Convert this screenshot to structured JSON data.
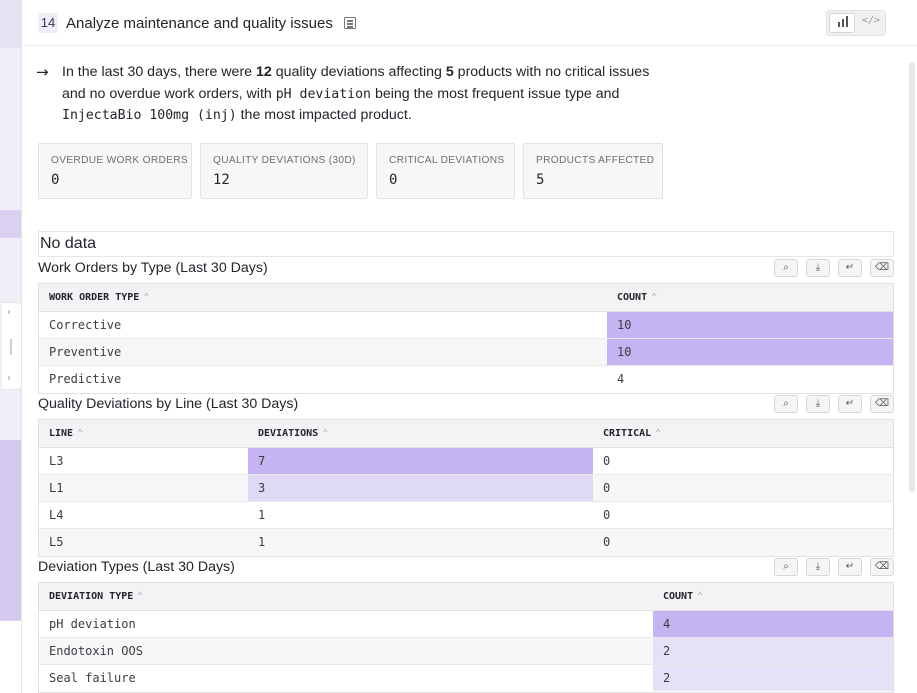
{
  "step": {
    "number": "14",
    "title": "Analyze maintenance and quality issues"
  },
  "summary": {
    "arrow": "→",
    "p1": "In the last 30 days, there were ",
    "n_deviations": "12",
    "p2": " quality deviations affecting ",
    "n_products": "5",
    "p3": " products with no critical issues and no overdue work orders, with ",
    "top_issue": "pH deviation",
    "p4": " being the most frequent issue type and ",
    "top_product": "InjectaBio 100mg (inj)",
    "p5": " the most impacted product."
  },
  "kpis": [
    {
      "label": "OVERDUE WORK ORDERS",
      "value": "0"
    },
    {
      "label": "QUALITY DEVIATIONS (30D)",
      "value": "12"
    },
    {
      "label": "CRITICAL DEVIATIONS",
      "value": "0"
    },
    {
      "label": "PRODUCTS AFFECTED",
      "value": "5"
    }
  ],
  "no_data": "No data",
  "tables": {
    "work_orders": {
      "title": "Work Orders by Type (Last 30 Days)",
      "headers": [
        "WORK ORDER TYPE",
        "COUNT"
      ],
      "rows": [
        [
          "Corrective",
          "10"
        ],
        [
          "Preventive",
          "10"
        ],
        [
          "Predictive",
          "4"
        ]
      ]
    },
    "deviations_by_line": {
      "title": "Quality Deviations by Line (Last 30 Days)",
      "headers": [
        "LINE",
        "DEVIATIONS",
        "CRITICAL"
      ],
      "rows": [
        [
          "L3",
          "7",
          "0"
        ],
        [
          "L1",
          "3",
          "0"
        ],
        [
          "L4",
          "1",
          "0"
        ],
        [
          "L5",
          "1",
          "0"
        ]
      ]
    },
    "deviation_types": {
      "title": "Deviation Types (Last 30 Days)",
      "headers": [
        "DEVIATION TYPE",
        "COUNT"
      ],
      "rows": [
        [
          "pH deviation",
          "4"
        ],
        [
          "Endotoxin OOS",
          "2"
        ],
        [
          "Seal failure",
          "2"
        ]
      ]
    }
  },
  "icons": {
    "sort": "⌃",
    "tools": [
      "search-icon",
      "download-icon",
      "wrap-icon",
      "clear-format-icon"
    ],
    "view": [
      "bar-chart-icon",
      "code-icon"
    ]
  },
  "colors": {
    "heat_strong": "#c4b5f2",
    "heat_light": "#e0d9f5",
    "accent_bg": "#efedf7"
  }
}
